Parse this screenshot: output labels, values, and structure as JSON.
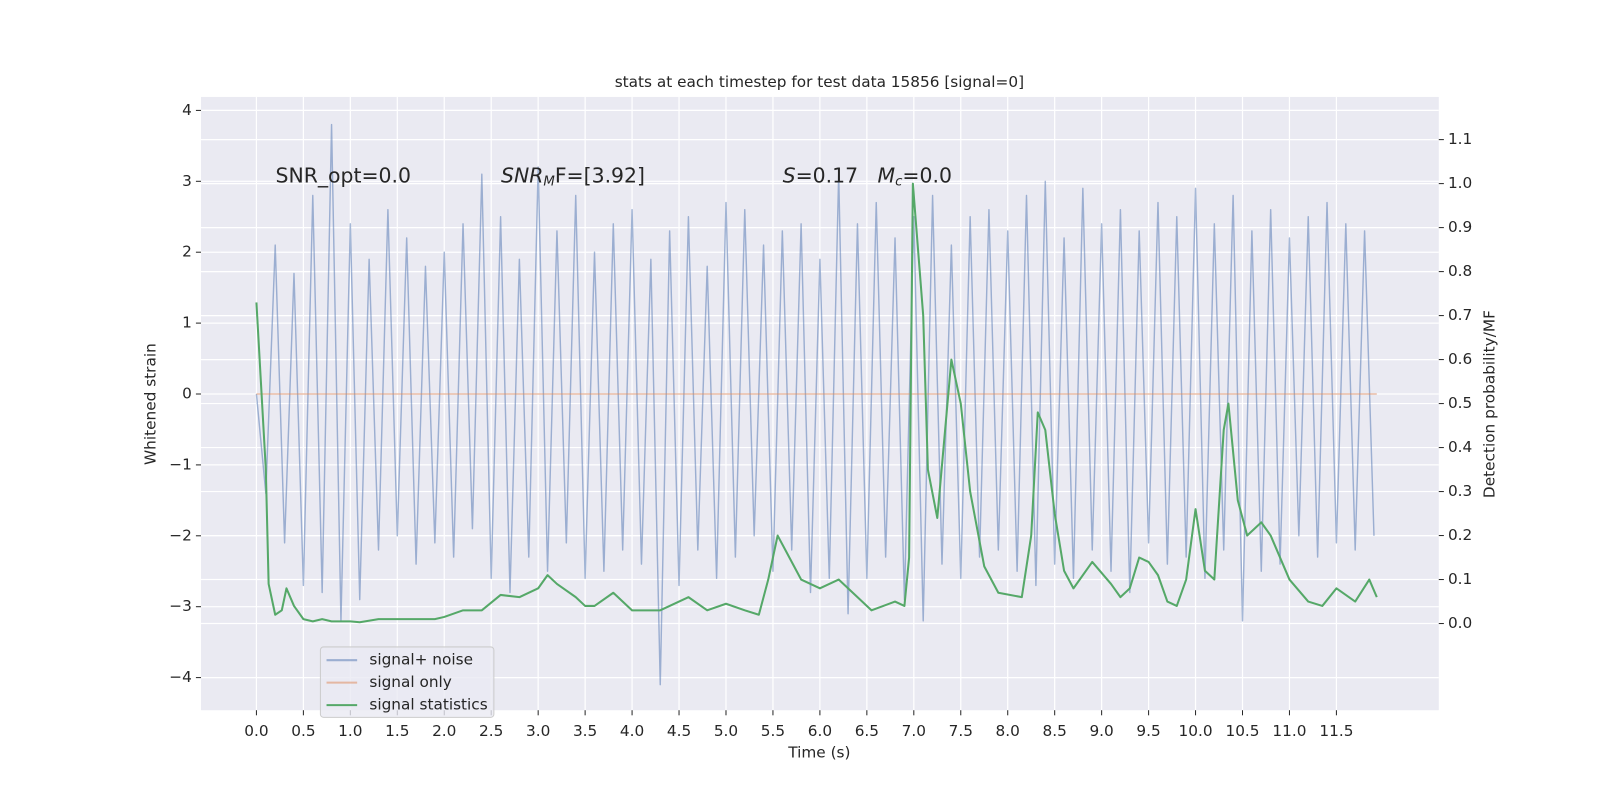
{
  "chart_data": {
    "type": "line",
    "title": "stats at each timestep for test data 15856 [signal=0]",
    "xlabel": "Time (s)",
    "ylabel": "Whitened strain",
    "y2label": "Detection probability/MF",
    "annotations": [
      [
        "SNR_opt=0.0"
      ],
      [
        "SNR",
        "M",
        "F=[3.92]"
      ],
      [
        "S",
        "=0.17   ",
        "M",
        "c",
        "=0.0"
      ]
    ],
    "xlim": [
      -0.59,
      12.59
    ],
    "ylim": [
      -4.46,
      4.19
    ],
    "y2lim": [
      -0.197,
      1.197
    ],
    "xticks": [
      {
        "value": 0,
        "label": "0.0"
      },
      0.5,
      {
        "value": 1,
        "label": "1.0"
      },
      1.5,
      {
        "value": 2,
        "label": "2.0"
      },
      2.5,
      {
        "value": 3,
        "label": "3.0"
      },
      3.5,
      {
        "value": 4,
        "label": "4.0"
      },
      4.5,
      {
        "value": 5,
        "label": "5.0"
      },
      5.5,
      {
        "value": 6,
        "label": "6.0"
      },
      6.5,
      {
        "value": 7,
        "label": "7.0"
      },
      7.5,
      {
        "value": 8,
        "label": "8.0"
      },
      8.5,
      {
        "value": 9,
        "label": "9.0"
      },
      9.5,
      {
        "value": 10,
        "label": "10.0"
      },
      10.5,
      {
        "value": 11,
        "label": "11.0"
      },
      11.5
    ],
    "yticks": [
      {
        "value": -4,
        "label": "−4"
      },
      {
        "value": -3,
        "label": "−3"
      },
      {
        "value": -2,
        "label": "−2"
      },
      {
        "value": -1,
        "label": "−1"
      },
      0,
      1,
      2,
      3,
      4
    ],
    "y2ticks": [
      {
        "value": 0,
        "label": "0.0"
      },
      0.1,
      0.2,
      0.3,
      0.4,
      0.5,
      0.6,
      0.7,
      0.8,
      0.9,
      {
        "value": 1,
        "label": "1.0"
      },
      1.1
    ],
    "grid": true,
    "legend": "lower left",
    "series": [
      {
        "name": "signal+ noise",
        "color": "rgba(76,114,176,0.5)",
        "x": [
          0,
          0.1,
          0.2,
          0.3,
          0.4,
          0.5,
          0.6,
          0.7,
          0.8,
          0.9,
          1,
          1.1,
          1.2,
          1.3,
          1.4,
          1.5,
          1.6,
          1.7,
          1.8,
          1.9,
          2,
          2.1,
          2.2,
          2.3,
          2.4,
          2.5,
          2.6,
          2.7,
          2.8,
          2.9,
          3,
          3.1,
          3.2,
          3.3,
          3.4,
          3.5,
          3.6,
          3.7,
          3.8,
          3.9,
          4,
          4.1,
          4.2,
          4.3,
          4.4,
          4.5,
          4.6,
          4.7,
          4.8,
          4.9,
          5,
          5.1,
          5.2,
          5.3,
          5.4,
          5.5,
          5.6,
          5.7,
          5.8,
          5.9,
          6,
          6.1,
          6.2,
          6.3,
          6.4,
          6.5,
          6.6,
          6.7,
          6.8,
          6.9,
          7,
          7.1,
          7.2,
          7.3,
          7.4,
          7.5,
          7.6,
          7.7,
          7.8,
          7.9,
          8,
          8.1,
          8.2,
          8.3,
          8.4,
          8.5,
          8.6,
          8.7,
          8.8,
          8.9,
          9,
          9.1,
          9.2,
          9.3,
          9.4,
          9.5,
          9.6,
          9.7,
          9.8,
          9.9,
          10,
          10.1,
          10.2,
          10.3,
          10.4,
          10.5,
          10.6,
          10.7,
          10.8,
          10.9,
          11,
          11.1,
          11.2,
          11.3,
          11.4,
          11.5,
          11.6,
          11.7,
          11.8,
          11.9
        ],
        "values": [
          0,
          -1.4,
          2.1,
          -2.1,
          1.7,
          -2.7,
          2.8,
          -2.8,
          3.8,
          -3.2,
          2.4,
          -2.9,
          1.9,
          -2.2,
          2.6,
          -2.0,
          2.2,
          -2.4,
          1.8,
          -2.1,
          2.0,
          -2.3,
          2.4,
          -1.9,
          3.1,
          -2.6,
          2.5,
          -2.8,
          1.9,
          -2.3,
          3.2,
          -2.5,
          2.3,
          -2.1,
          2.8,
          -2.6,
          2.0,
          -2.5,
          2.4,
          -2.2,
          2.6,
          -2.4,
          1.9,
          -4.1,
          2.3,
          -2.7,
          2.5,
          -2.2,
          1.8,
          -2.6,
          2.7,
          -2.3,
          2.6,
          -2.0,
          2.1,
          -2.5,
          2.3,
          -2.2,
          2.4,
          -2.8,
          1.9,
          -2.6,
          3.1,
          -3.1,
          2.4,
          -2.6,
          2.7,
          -2.3,
          2.2,
          -2.9,
          2.5,
          -3.2,
          2.8,
          -2.4,
          2.1,
          -2.6,
          2.5,
          -2.3,
          2.6,
          -2.2,
          2.3,
          -2.5,
          2.8,
          -2.7,
          3.0,
          -2.4,
          2.2,
          -2.6,
          2.9,
          -2.2,
          2.4,
          -2.5,
          2.6,
          -2.8,
          2.3,
          -2.1,
          2.7,
          -2.4,
          2.5,
          -2.3,
          2.9,
          -2.6,
          2.4,
          -2.2,
          2.8,
          -3.2,
          2.3,
          -2.5,
          2.6,
          -2.4,
          2.2,
          -2.0,
          2.5,
          -2.3,
          2.7,
          -2.1,
          2.4,
          -2.2,
          2.3,
          -2.0
        ]
      },
      {
        "name": "signal only",
        "color": "rgba(221,132,82,0.5)",
        "x": [
          0,
          11.93
        ],
        "values": [
          0,
          0
        ]
      },
      {
        "name": "signal statistics",
        "color": "#55a868",
        "axis": "y2",
        "x": [
          0,
          0.1,
          0.13,
          0.2,
          0.27,
          0.32,
          0.4,
          0.5,
          0.6,
          0.7,
          0.8,
          1,
          1.1,
          1.3,
          1.5,
          1.7,
          1.9,
          2,
          2.2,
          2.4,
          2.6,
          2.8,
          3,
          3.1,
          3.2,
          3.4,
          3.5,
          3.6,
          3.8,
          4,
          4.3,
          4.6,
          4.8,
          5,
          5.2,
          5.35,
          5.45,
          5.55,
          5.65,
          5.8,
          6,
          6.2,
          6.4,
          6.55,
          6.8,
          6.9,
          6.95,
          6.99,
          7.1,
          7.15,
          7.25,
          7.4,
          7.5,
          7.6,
          7.75,
          7.9,
          8.15,
          8.25,
          8.32,
          8.4,
          8.5,
          8.6,
          8.7,
          8.9,
          9.1,
          9.2,
          9.3,
          9.4,
          9.5,
          9.6,
          9.7,
          9.8,
          9.9,
          10,
          10.1,
          10.2,
          10.3,
          10.35,
          10.45,
          10.55,
          10.7,
          10.8,
          11,
          11.2,
          11.35,
          11.5,
          11.7,
          11.85,
          11.93
        ],
        "values": [
          0.73,
          0.35,
          0.09,
          0.02,
          0.03,
          0.08,
          0.04,
          0.01,
          0.005,
          0.01,
          0.005,
          0.005,
          0.003,
          0.01,
          0.01,
          0.01,
          0.01,
          0.015,
          0.03,
          0.03,
          0.065,
          0.06,
          0.08,
          0.11,
          0.09,
          0.06,
          0.04,
          0.04,
          0.07,
          0.03,
          0.03,
          0.06,
          0.03,
          0.045,
          0.03,
          0.02,
          0.1,
          0.2,
          0.16,
          0.1,
          0.08,
          0.1,
          0.06,
          0.03,
          0.05,
          0.04,
          0.15,
          1.0,
          0.7,
          0.35,
          0.24,
          0.6,
          0.5,
          0.3,
          0.13,
          0.07,
          0.06,
          0.2,
          0.48,
          0.44,
          0.25,
          0.12,
          0.08,
          0.14,
          0.09,
          0.06,
          0.08,
          0.15,
          0.14,
          0.11,
          0.05,
          0.04,
          0.1,
          0.26,
          0.12,
          0.1,
          0.44,
          0.5,
          0.28,
          0.2,
          0.23,
          0.2,
          0.1,
          0.05,
          0.04,
          0.08,
          0.05,
          0.1,
          0.06
        ]
      }
    ]
  }
}
